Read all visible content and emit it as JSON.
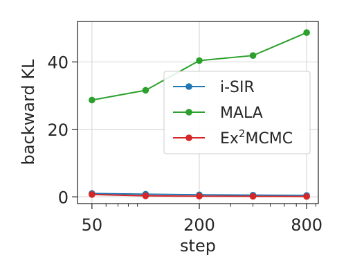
{
  "chart_data": {
    "type": "line",
    "xlabel": "step",
    "ylabel": "backward KL",
    "x_scale": "log",
    "xlim": [
      41.5,
      930
    ],
    "ylim": [
      -2,
      52
    ],
    "x_ticks": [
      50,
      200,
      800
    ],
    "x_tick_labels": [
      "50",
      "200",
      "800"
    ],
    "y_ticks": [
      0,
      20,
      40
    ],
    "y_tick_labels": [
      "0",
      "20",
      "40"
    ],
    "grid": true,
    "legend_position": "center-right",
    "x": [
      50,
      100,
      200,
      400,
      800
    ],
    "series": [
      {
        "name": "i-SIR",
        "color": "#1f77b4",
        "values": [
          1.0,
          0.8,
          0.6,
          0.5,
          0.4
        ]
      },
      {
        "name": "MALA",
        "color": "#2ca02c",
        "values": [
          28.7,
          31.6,
          40.4,
          41.9,
          48.7
        ]
      },
      {
        "name": "Ex²MCMC",
        "name_base": "Ex",
        "name_sup": "2",
        "name_rest": "MCMC",
        "color": "#d62728",
        "values": [
          0.7,
          0.3,
          0.2,
          0.15,
          0.1
        ]
      }
    ]
  }
}
